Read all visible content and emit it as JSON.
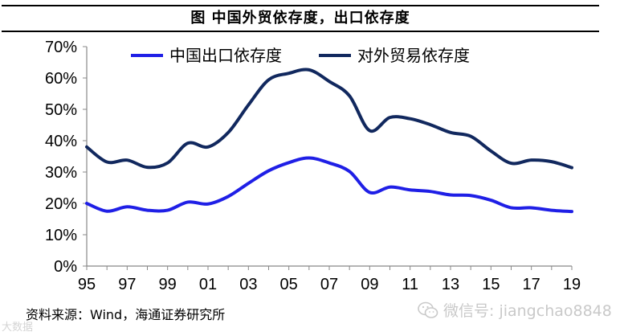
{
  "header": {
    "title": "图  中国外贸依存度，出口依存度"
  },
  "footer": {
    "source": "资料来源：Wind，海通证券研究所"
  },
  "watermark": {
    "text": "微信号: jiangchao8848",
    "icon": "wechat-icon",
    "corner_text": "大数据"
  },
  "colors": {
    "export_line": "#1f1fe6",
    "trade_line": "#11285e",
    "axis": "#888888"
  },
  "chart_data": {
    "type": "line",
    "title": "图  中国外贸依存度，出口依存度",
    "xlabel": "",
    "ylabel": "",
    "x": [
      1995,
      1996,
      1997,
      1998,
      1999,
      2000,
      2001,
      2002,
      2003,
      2004,
      2005,
      2006,
      2007,
      2008,
      2009,
      2010,
      2011,
      2012,
      2013,
      2014,
      2015,
      2016,
      2017,
      2018,
      2019
    ],
    "x_tick_labels": [
      "95",
      "97",
      "99",
      "01",
      "03",
      "05",
      "07",
      "09",
      "11",
      "13",
      "15",
      "17",
      "19"
    ],
    "x_tick_years": [
      1995,
      1997,
      1999,
      2001,
      2003,
      2005,
      2007,
      2009,
      2011,
      2013,
      2015,
      2017,
      2019
    ],
    "ylim": [
      0,
      70
    ],
    "y_ticks": [
      0,
      10,
      20,
      30,
      40,
      50,
      60,
      70
    ],
    "y_tick_labels": [
      "0%",
      "10%",
      "20%",
      "30%",
      "40%",
      "50%",
      "60%",
      "70%"
    ],
    "grid": false,
    "legend_position": "top",
    "series": [
      {
        "name": "中国出口依存度",
        "values": [
          20.0,
          17.5,
          18.9,
          17.8,
          17.8,
          20.4,
          19.8,
          22.2,
          26.4,
          30.4,
          33.0,
          34.5,
          32.9,
          30.2,
          23.5,
          25.2,
          24.3,
          23.8,
          22.7,
          22.5,
          21.0,
          18.6,
          18.6,
          17.8,
          17.4
        ]
      },
      {
        "name": "对外贸易依存度",
        "values": [
          38.0,
          33.2,
          33.8,
          31.5,
          32.9,
          39.2,
          38.0,
          42.6,
          51.4,
          59.4,
          61.5,
          62.6,
          58.9,
          54.3,
          43.2,
          47.4,
          47.0,
          45.1,
          42.6,
          41.4,
          36.7,
          32.8,
          33.8,
          33.3,
          31.4
        ]
      }
    ]
  }
}
